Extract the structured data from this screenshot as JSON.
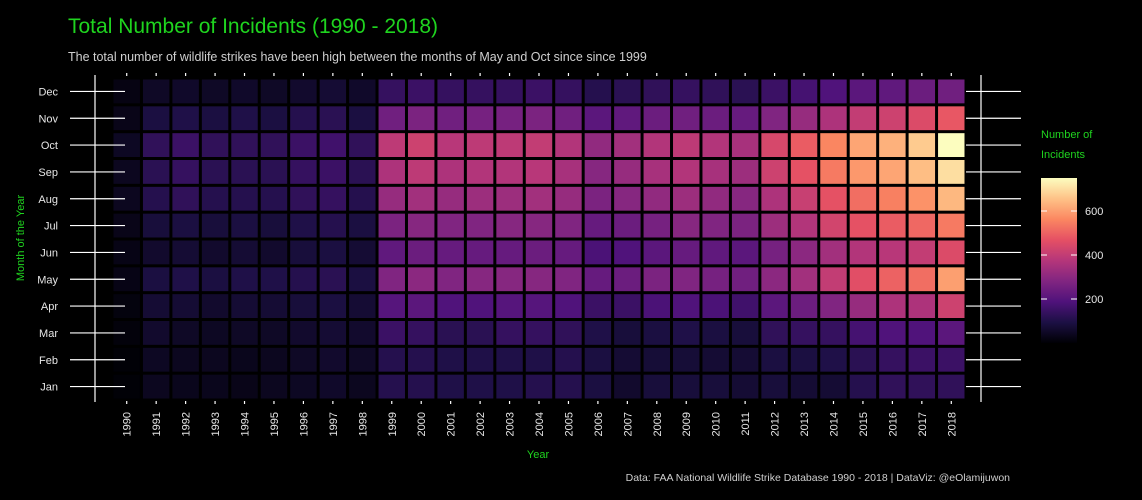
{
  "chart_data": {
    "type": "heatmap",
    "title": "Total Number of Incidents (1990 - 2018)",
    "subtitle": "The total number of wildlife strikes have been high between the months of May and Oct since since 1999",
    "xlabel": "Year",
    "ylabel": "Month of the Year",
    "caption": "Data: FAA National Wildlife Strike Database 1990 - 2018 | DataViz: @eOlamijuwon",
    "legend": {
      "title_lines": [
        "Number of",
        "Incidents"
      ],
      "ticks": [
        200,
        400,
        600
      ],
      "range": [
        0,
        750
      ],
      "placement": "right"
    },
    "x": [
      "1990",
      "1991",
      "1992",
      "1993",
      "1994",
      "1995",
      "1996",
      "1997",
      "1998",
      "1999",
      "2000",
      "2001",
      "2002",
      "2003",
      "2004",
      "2005",
      "2006",
      "2007",
      "2008",
      "2009",
      "2010",
      "2011",
      "2012",
      "2013",
      "2014",
      "2015",
      "2016",
      "2017",
      "2018"
    ],
    "y": [
      "Jan",
      "Feb",
      "Mar",
      "Apr",
      "May",
      "Jun",
      "Jul",
      "Aug",
      "Sep",
      "Oct",
      "Nov",
      "Dec"
    ],
    "values": [
      [
        5,
        40,
        35,
        35,
        30,
        40,
        45,
        55,
        40,
        110,
        110,
        100,
        100,
        100,
        110,
        110,
        90,
        60,
        80,
        80,
        80,
        70,
        80,
        70,
        70,
        110,
        130,
        130,
        130
      ],
      [
        5,
        45,
        40,
        40,
        35,
        40,
        50,
        60,
        50,
        110,
        110,
        100,
        100,
        100,
        100,
        110,
        90,
        70,
        75,
        75,
        70,
        70,
        90,
        90,
        100,
        120,
        140,
        150,
        150
      ],
      [
        10,
        60,
        50,
        45,
        50,
        50,
        60,
        70,
        60,
        150,
        140,
        120,
        120,
        140,
        140,
        130,
        100,
        80,
        90,
        100,
        90,
        80,
        130,
        140,
        140,
        170,
        190,
        190,
        210
      ],
      [
        15,
        70,
        70,
        60,
        70,
        70,
        80,
        90,
        70,
        200,
        210,
        190,
        190,
        200,
        200,
        190,
        150,
        150,
        180,
        190,
        180,
        160,
        210,
        240,
        280,
        320,
        360,
        360,
        420
      ],
      [
        25,
        90,
        100,
        90,
        100,
        100,
        110,
        120,
        90,
        280,
        300,
        280,
        290,
        290,
        290,
        280,
        230,
        240,
        270,
        280,
        260,
        250,
        300,
        340,
        400,
        460,
        500,
        520,
        600
      ],
      [
        25,
        60,
        70,
        60,
        70,
        60,
        80,
        90,
        70,
        220,
        240,
        230,
        230,
        230,
        240,
        230,
        180,
        190,
        210,
        230,
        220,
        210,
        260,
        300,
        340,
        370,
        380,
        400,
        450
      ],
      [
        30,
        80,
        90,
        80,
        90,
        80,
        100,
        110,
        90,
        270,
        290,
        280,
        280,
        290,
        290,
        280,
        230,
        240,
        260,
        290,
        280,
        270,
        330,
        370,
        430,
        470,
        490,
        510,
        540
      ],
      [
        40,
        110,
        130,
        110,
        110,
        110,
        130,
        140,
        110,
        320,
        340,
        320,
        330,
        330,
        340,
        320,
        270,
        290,
        310,
        330,
        310,
        290,
        360,
        410,
        470,
        520,
        550,
        580,
        640
      ],
      [
        40,
        120,
        140,
        120,
        120,
        120,
        140,
        150,
        120,
        360,
        390,
        360,
        370,
        370,
        380,
        350,
        290,
        320,
        350,
        370,
        350,
        330,
        420,
        470,
        540,
        590,
        610,
        650,
        700
      ],
      [
        45,
        130,
        150,
        130,
        130,
        130,
        150,
        160,
        130,
        390,
        420,
        380,
        390,
        390,
        400,
        370,
        310,
        340,
        370,
        390,
        370,
        350,
        440,
        490,
        560,
        610,
        630,
        670,
        750
      ],
      [
        30,
        90,
        100,
        90,
        100,
        90,
        110,
        120,
        90,
        250,
        270,
        250,
        260,
        260,
        270,
        250,
        210,
        220,
        240,
        250,
        240,
        230,
        280,
        320,
        360,
        400,
        420,
        450,
        480
      ],
      [
        20,
        50,
        55,
        50,
        55,
        50,
        60,
        70,
        55,
        140,
        150,
        140,
        140,
        140,
        150,
        140,
        110,
        120,
        130,
        140,
        130,
        120,
        150,
        170,
        190,
        210,
        220,
        240,
        250
      ]
    ]
  }
}
